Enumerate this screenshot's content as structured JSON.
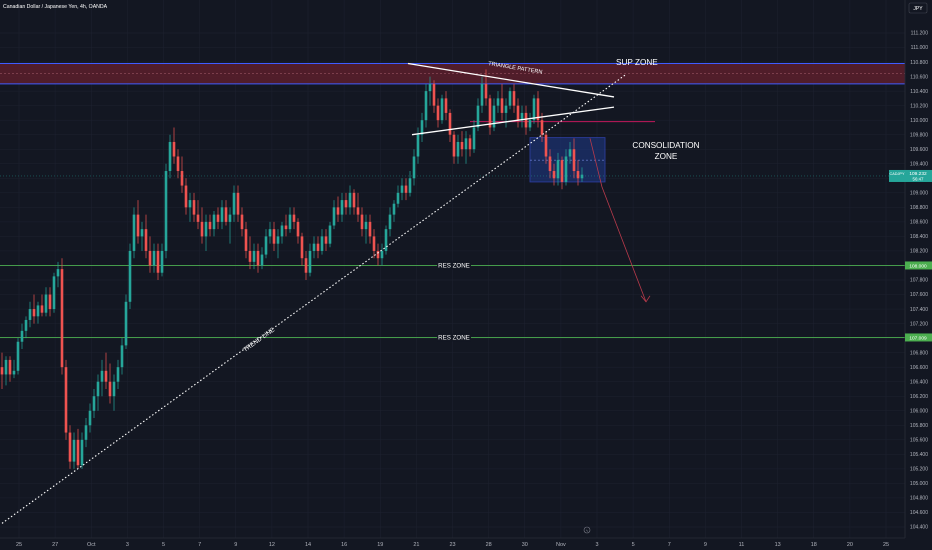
{
  "header": {
    "symbol_line": "Canadian Dollar / Japanese Yen, 4h, OANDA",
    "currency": "JPY"
  },
  "colors": {
    "background": "#131722",
    "bull": "#26a69a",
    "bear": "#ef5350",
    "grid": "#1e2230",
    "sup_zone_fill": "#5c1f2b",
    "zone_border": "#3f5bff",
    "res_line": "#4caf50",
    "consolidation_fill": "#1e3a8a"
  },
  "chart_data": {
    "type": "candlestick",
    "ylim": [
      104.3,
      111.3
    ],
    "y_ticks": [
      "104.400",
      "104.600",
      "104.800",
      "105.000",
      "105.200",
      "105.400",
      "105.600",
      "105.800",
      "106.000",
      "106.200",
      "106.400",
      "106.600",
      "106.800",
      "107.000",
      "107.200",
      "107.400",
      "107.600",
      "107.800",
      "108.000",
      "108.200",
      "108.400",
      "108.600",
      "108.800",
      "109.000",
      "109.200",
      "109.400",
      "109.600",
      "109.800",
      "110.000",
      "110.200",
      "110.400",
      "110.600",
      "110.800",
      "111.000",
      "111.200"
    ],
    "x_ticks": [
      "25",
      "27",
      "Oct",
      "3",
      "5",
      "7",
      "9",
      "12",
      "14",
      "16",
      "19",
      "21",
      "23",
      "28",
      "30",
      "Nov",
      "3",
      "5",
      "7",
      "9",
      "11",
      "13",
      "18",
      "20",
      "25"
    ],
    "price_label": {
      "symbol": "CADJPY",
      "price": "109.232",
      "countdown": "56:47",
      "value": 109.232
    },
    "res_labels": [
      {
        "price_text": "108.000",
        "value": 108.0
      },
      {
        "price_text": "107.009",
        "value": 107.009
      }
    ],
    "zones": {
      "sup": {
        "label": "SUP ZONE",
        "low": 110.5,
        "high": 110.78
      },
      "res": [
        {
          "label": "RES ZONE",
          "value": 108.0
        },
        {
          "label": "RES ZONE",
          "value": 107.009
        }
      ],
      "consolidation": {
        "label_line1": "CONSOLIDATION",
        "label_line2": "ZONE",
        "low": 109.15,
        "high": 109.76,
        "mid": 109.45,
        "x_start": 530,
        "x_end": 605
      },
      "red_line": {
        "value": 109.98,
        "x_start": 470,
        "x_end": 655
      }
    },
    "annotations": {
      "trend_line": {
        "label": "TREND LINE",
        "x1": 2,
        "y1": 104.45,
        "x2": 625,
        "y2": 110.62
      },
      "triangle_pattern": {
        "label": "TRIANGLE PATTERN"
      },
      "triangle_upper": {
        "x1": 408,
        "y1": 110.78,
        "x2": 614,
        "y2": 110.32
      },
      "triangle_lower": {
        "x1": 412,
        "y1": 109.8,
        "x2": 614,
        "y2": 110.18
      },
      "forecast_arrow": {
        "x1": 590,
        "y1": 109.75,
        "x2": 602,
        "y2": 109.08,
        "x3": 646,
        "y3": 107.5
      }
    },
    "candles": [
      {
        "x": 2,
        "o": 106.6,
        "h": 106.8,
        "l": 106.3,
        "c": 106.5
      },
      {
        "x": 6,
        "o": 106.5,
        "h": 106.75,
        "l": 106.35,
        "c": 106.7
      },
      {
        "x": 10,
        "o": 106.7,
        "h": 106.75,
        "l": 106.4,
        "c": 106.5
      },
      {
        "x": 14,
        "o": 106.5,
        "h": 106.7,
        "l": 106.45,
        "c": 106.55
      },
      {
        "x": 18,
        "o": 106.55,
        "h": 107.0,
        "l": 106.5,
        "c": 106.95
      },
      {
        "x": 22,
        "o": 106.95,
        "h": 107.2,
        "l": 106.85,
        "c": 107.1
      },
      {
        "x": 26,
        "o": 107.1,
        "h": 107.3,
        "l": 107.0,
        "c": 107.25
      },
      {
        "x": 30,
        "o": 107.25,
        "h": 107.5,
        "l": 107.15,
        "c": 107.4
      },
      {
        "x": 34,
        "o": 107.4,
        "h": 107.6,
        "l": 107.2,
        "c": 107.3
      },
      {
        "x": 38,
        "o": 107.3,
        "h": 107.5,
        "l": 107.2,
        "c": 107.45
      },
      {
        "x": 42,
        "o": 107.45,
        "h": 107.6,
        "l": 107.3,
        "c": 107.35
      },
      {
        "x": 46,
        "o": 107.35,
        "h": 107.7,
        "l": 107.3,
        "c": 107.6
      },
      {
        "x": 50,
        "o": 107.6,
        "h": 107.7,
        "l": 107.3,
        "c": 107.4
      },
      {
        "x": 54,
        "o": 107.4,
        "h": 107.9,
        "l": 107.35,
        "c": 107.85
      },
      {
        "x": 58,
        "o": 107.85,
        "h": 108.05,
        "l": 107.7,
        "c": 107.95
      },
      {
        "x": 62,
        "o": 107.95,
        "h": 108.1,
        "l": 106.5,
        "c": 106.6
      },
      {
        "x": 66,
        "o": 106.6,
        "h": 106.7,
        "l": 105.6,
        "c": 105.7
      },
      {
        "x": 70,
        "o": 105.7,
        "h": 105.8,
        "l": 105.2,
        "c": 105.3
      },
      {
        "x": 74,
        "o": 105.3,
        "h": 105.7,
        "l": 105.2,
        "c": 105.6
      },
      {
        "x": 78,
        "o": 105.6,
        "h": 105.75,
        "l": 105.2,
        "c": 105.25
      },
      {
        "x": 82,
        "o": 105.25,
        "h": 105.7,
        "l": 105.2,
        "c": 105.6
      },
      {
        "x": 86,
        "o": 105.6,
        "h": 105.9,
        "l": 105.5,
        "c": 105.8
      },
      {
        "x": 90,
        "o": 105.8,
        "h": 106.1,
        "l": 105.7,
        "c": 106.0
      },
      {
        "x": 94,
        "o": 106.0,
        "h": 106.3,
        "l": 105.9,
        "c": 106.2
      },
      {
        "x": 98,
        "o": 106.2,
        "h": 106.5,
        "l": 106.0,
        "c": 106.4
      },
      {
        "x": 102,
        "o": 106.4,
        "h": 106.7,
        "l": 106.2,
        "c": 106.55
      },
      {
        "x": 106,
        "o": 106.55,
        "h": 106.8,
        "l": 106.3,
        "c": 106.4
      },
      {
        "x": 110,
        "o": 106.4,
        "h": 106.65,
        "l": 106.1,
        "c": 106.2
      },
      {
        "x": 114,
        "o": 106.2,
        "h": 106.5,
        "l": 106.0,
        "c": 106.4
      },
      {
        "x": 118,
        "o": 106.4,
        "h": 106.7,
        "l": 106.3,
        "c": 106.6
      },
      {
        "x": 122,
        "o": 106.6,
        "h": 107.0,
        "l": 106.5,
        "c": 106.9
      },
      {
        "x": 126,
        "o": 106.9,
        "h": 107.6,
        "l": 106.85,
        "c": 107.5
      },
      {
        "x": 130,
        "o": 107.5,
        "h": 108.3,
        "l": 107.4,
        "c": 108.2
      },
      {
        "x": 134,
        "o": 108.2,
        "h": 108.8,
        "l": 108.1,
        "c": 108.7
      },
      {
        "x": 138,
        "o": 108.7,
        "h": 108.9,
        "l": 108.3,
        "c": 108.4
      },
      {
        "x": 142,
        "o": 108.4,
        "h": 108.6,
        "l": 108.2,
        "c": 108.5
      },
      {
        "x": 146,
        "o": 108.5,
        "h": 108.7,
        "l": 108.1,
        "c": 108.2
      },
      {
        "x": 150,
        "o": 108.2,
        "h": 108.4,
        "l": 107.9,
        "c": 108.0
      },
      {
        "x": 154,
        "o": 108.0,
        "h": 108.3,
        "l": 107.9,
        "c": 108.2
      },
      {
        "x": 158,
        "o": 108.2,
        "h": 108.3,
        "l": 107.8,
        "c": 107.9
      },
      {
        "x": 162,
        "o": 107.9,
        "h": 108.3,
        "l": 107.85,
        "c": 108.2
      },
      {
        "x": 166,
        "o": 108.2,
        "h": 109.4,
        "l": 108.1,
        "c": 109.3
      },
      {
        "x": 170,
        "o": 109.3,
        "h": 109.8,
        "l": 109.2,
        "c": 109.7
      },
      {
        "x": 174,
        "o": 109.7,
        "h": 109.9,
        "l": 109.4,
        "c": 109.5
      },
      {
        "x": 178,
        "o": 109.5,
        "h": 109.6,
        "l": 109.2,
        "c": 109.3
      },
      {
        "x": 182,
        "o": 109.3,
        "h": 109.5,
        "l": 109.0,
        "c": 109.1
      },
      {
        "x": 186,
        "o": 109.1,
        "h": 109.2,
        "l": 108.7,
        "c": 108.8
      },
      {
        "x": 190,
        "o": 108.8,
        "h": 109.0,
        "l": 108.6,
        "c": 108.9
      },
      {
        "x": 194,
        "o": 108.9,
        "h": 109.0,
        "l": 108.6,
        "c": 108.7
      },
      {
        "x": 198,
        "o": 108.7,
        "h": 108.9,
        "l": 108.5,
        "c": 108.6
      },
      {
        "x": 202,
        "o": 108.6,
        "h": 108.8,
        "l": 108.3,
        "c": 108.4
      },
      {
        "x": 206,
        "o": 108.4,
        "h": 108.7,
        "l": 108.2,
        "c": 108.6
      },
      {
        "x": 210,
        "o": 108.6,
        "h": 108.7,
        "l": 108.4,
        "c": 108.5
      },
      {
        "x": 214,
        "o": 108.5,
        "h": 108.75,
        "l": 108.4,
        "c": 108.7
      },
      {
        "x": 218,
        "o": 108.7,
        "h": 108.8,
        "l": 108.5,
        "c": 108.6
      },
      {
        "x": 222,
        "o": 108.6,
        "h": 108.9,
        "l": 108.5,
        "c": 108.8
      },
      {
        "x": 226,
        "o": 108.8,
        "h": 108.9,
        "l": 108.55,
        "c": 108.6
      },
      {
        "x": 230,
        "o": 108.6,
        "h": 108.8,
        "l": 108.3,
        "c": 108.7
      },
      {
        "x": 234,
        "o": 108.7,
        "h": 109.1,
        "l": 108.6,
        "c": 109.0
      },
      {
        "x": 238,
        "o": 109.0,
        "h": 109.1,
        "l": 108.6,
        "c": 108.7
      },
      {
        "x": 242,
        "o": 108.7,
        "h": 108.8,
        "l": 108.4,
        "c": 108.5
      },
      {
        "x": 246,
        "o": 108.5,
        "h": 108.6,
        "l": 108.1,
        "c": 108.2
      },
      {
        "x": 250,
        "o": 108.2,
        "h": 108.4,
        "l": 107.95,
        "c": 108.05
      },
      {
        "x": 254,
        "o": 108.05,
        "h": 108.3,
        "l": 107.95,
        "c": 108.2
      },
      {
        "x": 258,
        "o": 108.2,
        "h": 108.3,
        "l": 107.9,
        "c": 108.0
      },
      {
        "x": 262,
        "o": 108.0,
        "h": 108.25,
        "l": 107.95,
        "c": 108.15
      },
      {
        "x": 266,
        "o": 108.15,
        "h": 108.5,
        "l": 108.1,
        "c": 108.4
      },
      {
        "x": 270,
        "o": 108.4,
        "h": 108.6,
        "l": 108.3,
        "c": 108.5
      },
      {
        "x": 274,
        "o": 108.5,
        "h": 108.6,
        "l": 108.2,
        "c": 108.3
      },
      {
        "x": 278,
        "o": 108.3,
        "h": 108.5,
        "l": 108.1,
        "c": 108.4
      },
      {
        "x": 282,
        "o": 108.4,
        "h": 108.6,
        "l": 108.3,
        "c": 108.55
      },
      {
        "x": 286,
        "o": 108.55,
        "h": 108.7,
        "l": 108.4,
        "c": 108.5
      },
      {
        "x": 290,
        "o": 108.5,
        "h": 108.8,
        "l": 108.45,
        "c": 108.7
      },
      {
        "x": 294,
        "o": 108.7,
        "h": 108.8,
        "l": 108.5,
        "c": 108.6
      },
      {
        "x": 298,
        "o": 108.6,
        "h": 108.65,
        "l": 108.3,
        "c": 108.4
      },
      {
        "x": 302,
        "o": 108.4,
        "h": 108.45,
        "l": 108.0,
        "c": 108.1
      },
      {
        "x": 306,
        "o": 108.1,
        "h": 108.2,
        "l": 107.8,
        "c": 107.9
      },
      {
        "x": 310,
        "o": 107.9,
        "h": 108.3,
        "l": 107.85,
        "c": 108.2
      },
      {
        "x": 314,
        "o": 108.2,
        "h": 108.4,
        "l": 108.1,
        "c": 108.3
      },
      {
        "x": 318,
        "o": 108.3,
        "h": 108.4,
        "l": 108.1,
        "c": 108.2
      },
      {
        "x": 322,
        "o": 108.2,
        "h": 108.5,
        "l": 108.15,
        "c": 108.4
      },
      {
        "x": 326,
        "o": 108.4,
        "h": 108.5,
        "l": 108.2,
        "c": 108.3
      },
      {
        "x": 330,
        "o": 108.3,
        "h": 108.6,
        "l": 108.25,
        "c": 108.55
      },
      {
        "x": 334,
        "o": 108.55,
        "h": 108.9,
        "l": 108.5,
        "c": 108.8
      },
      {
        "x": 338,
        "o": 108.8,
        "h": 108.95,
        "l": 108.6,
        "c": 108.7
      },
      {
        "x": 342,
        "o": 108.7,
        "h": 109.0,
        "l": 108.6,
        "c": 108.9
      },
      {
        "x": 346,
        "o": 108.9,
        "h": 109.0,
        "l": 108.7,
        "c": 108.8
      },
      {
        "x": 350,
        "o": 108.8,
        "h": 109.1,
        "l": 108.7,
        "c": 109.0
      },
      {
        "x": 354,
        "o": 109.0,
        "h": 109.05,
        "l": 108.7,
        "c": 108.8
      },
      {
        "x": 358,
        "o": 108.8,
        "h": 109.0,
        "l": 108.6,
        "c": 108.7
      },
      {
        "x": 362,
        "o": 108.7,
        "h": 108.8,
        "l": 108.4,
        "c": 108.5
      },
      {
        "x": 366,
        "o": 108.5,
        "h": 108.7,
        "l": 108.3,
        "c": 108.6
      },
      {
        "x": 370,
        "o": 108.6,
        "h": 108.7,
        "l": 108.3,
        "c": 108.4
      },
      {
        "x": 374,
        "o": 108.4,
        "h": 108.5,
        "l": 108.1,
        "c": 108.2
      },
      {
        "x": 378,
        "o": 108.2,
        "h": 108.3,
        "l": 108.0,
        "c": 108.1
      },
      {
        "x": 382,
        "o": 108.1,
        "h": 108.3,
        "l": 108.0,
        "c": 108.2
      },
      {
        "x": 386,
        "o": 108.2,
        "h": 108.55,
        "l": 108.15,
        "c": 108.5
      },
      {
        "x": 390,
        "o": 108.5,
        "h": 108.8,
        "l": 108.4,
        "c": 108.7
      },
      {
        "x": 394,
        "o": 108.7,
        "h": 108.9,
        "l": 108.6,
        "c": 108.85
      },
      {
        "x": 398,
        "o": 108.85,
        "h": 109.1,
        "l": 108.8,
        "c": 109.0
      },
      {
        "x": 402,
        "o": 109.0,
        "h": 109.2,
        "l": 108.9,
        "c": 109.1
      },
      {
        "x": 406,
        "o": 109.1,
        "h": 109.2,
        "l": 108.9,
        "c": 109.0
      },
      {
        "x": 410,
        "o": 109.0,
        "h": 109.3,
        "l": 108.95,
        "c": 109.2
      },
      {
        "x": 414,
        "o": 109.2,
        "h": 109.6,
        "l": 109.1,
        "c": 109.5
      },
      {
        "x": 418,
        "o": 109.5,
        "h": 109.9,
        "l": 109.4,
        "c": 109.8
      },
      {
        "x": 422,
        "o": 109.8,
        "h": 110.1,
        "l": 109.7,
        "c": 110.0
      },
      {
        "x": 426,
        "o": 110.0,
        "h": 110.5,
        "l": 109.9,
        "c": 110.4
      },
      {
        "x": 430,
        "o": 110.4,
        "h": 110.6,
        "l": 110.2,
        "c": 110.5
      },
      {
        "x": 434,
        "o": 110.5,
        "h": 110.55,
        "l": 110.1,
        "c": 110.2
      },
      {
        "x": 438,
        "o": 110.2,
        "h": 110.3,
        "l": 109.9,
        "c": 110.0
      },
      {
        "x": 442,
        "o": 110.0,
        "h": 110.35,
        "l": 109.95,
        "c": 110.3
      },
      {
        "x": 446,
        "o": 110.3,
        "h": 110.4,
        "l": 110.0,
        "c": 110.1
      },
      {
        "x": 450,
        "o": 110.1,
        "h": 110.15,
        "l": 109.7,
        "c": 109.8
      },
      {
        "x": 454,
        "o": 109.8,
        "h": 109.85,
        "l": 109.4,
        "c": 109.5
      },
      {
        "x": 458,
        "o": 109.5,
        "h": 109.8,
        "l": 109.4,
        "c": 109.7
      },
      {
        "x": 462,
        "o": 109.7,
        "h": 109.85,
        "l": 109.5,
        "c": 109.6
      },
      {
        "x": 466,
        "o": 109.6,
        "h": 109.85,
        "l": 109.4,
        "c": 109.75
      },
      {
        "x": 470,
        "o": 109.75,
        "h": 109.8,
        "l": 109.5,
        "c": 109.6
      },
      {
        "x": 474,
        "o": 109.6,
        "h": 110.0,
        "l": 109.55,
        "c": 109.9
      },
      {
        "x": 478,
        "o": 109.9,
        "h": 110.3,
        "l": 109.85,
        "c": 110.2
      },
      {
        "x": 482,
        "o": 110.2,
        "h": 110.6,
        "l": 110.1,
        "c": 110.5
      },
      {
        "x": 486,
        "o": 110.5,
        "h": 110.7,
        "l": 110.2,
        "c": 110.3
      },
      {
        "x": 490,
        "o": 110.3,
        "h": 110.35,
        "l": 109.8,
        "c": 109.9
      },
      {
        "x": 494,
        "o": 109.9,
        "h": 110.3,
        "l": 109.85,
        "c": 110.2
      },
      {
        "x": 498,
        "o": 110.2,
        "h": 110.4,
        "l": 110.1,
        "c": 110.3
      },
      {
        "x": 502,
        "o": 110.3,
        "h": 110.5,
        "l": 110.0,
        "c": 110.1
      },
      {
        "x": 506,
        "o": 110.1,
        "h": 110.3,
        "l": 109.9,
        "c": 110.2
      },
      {
        "x": 510,
        "o": 110.2,
        "h": 110.45,
        "l": 110.15,
        "c": 110.4
      },
      {
        "x": 514,
        "o": 110.4,
        "h": 110.5,
        "l": 110.1,
        "c": 110.2
      },
      {
        "x": 518,
        "o": 110.2,
        "h": 110.3,
        "l": 109.9,
        "c": 110.0
      },
      {
        "x": 522,
        "o": 110.0,
        "h": 110.2,
        "l": 109.9,
        "c": 110.1
      },
      {
        "x": 526,
        "o": 110.1,
        "h": 110.2,
        "l": 109.8,
        "c": 109.9
      },
      {
        "x": 530,
        "o": 109.9,
        "h": 110.1,
        "l": 109.85,
        "c": 110.0
      },
      {
        "x": 534,
        "o": 110.0,
        "h": 110.35,
        "l": 109.95,
        "c": 110.3
      },
      {
        "x": 538,
        "o": 110.3,
        "h": 110.4,
        "l": 109.9,
        "c": 110.0
      },
      {
        "x": 542,
        "o": 110.0,
        "h": 110.1,
        "l": 109.7,
        "c": 109.8
      },
      {
        "x": 546,
        "o": 109.8,
        "h": 109.85,
        "l": 109.4,
        "c": 109.5
      },
      {
        "x": 550,
        "o": 109.5,
        "h": 109.6,
        "l": 109.2,
        "c": 109.3
      },
      {
        "x": 554,
        "o": 109.3,
        "h": 109.4,
        "l": 109.1,
        "c": 109.2
      },
      {
        "x": 558,
        "o": 109.2,
        "h": 109.55,
        "l": 109.1,
        "c": 109.45
      },
      {
        "x": 562,
        "o": 109.45,
        "h": 109.5,
        "l": 109.05,
        "c": 109.15
      },
      {
        "x": 566,
        "o": 109.15,
        "h": 109.6,
        "l": 109.1,
        "c": 109.5
      },
      {
        "x": 570,
        "o": 109.5,
        "h": 109.7,
        "l": 109.4,
        "c": 109.6
      },
      {
        "x": 574,
        "o": 109.6,
        "h": 109.75,
        "l": 109.2,
        "c": 109.3
      },
      {
        "x": 578,
        "o": 109.3,
        "h": 109.45,
        "l": 109.1,
        "c": 109.2
      },
      {
        "x": 582,
        "o": 109.2,
        "h": 109.35,
        "l": 109.15,
        "c": 109.25
      }
    ]
  }
}
